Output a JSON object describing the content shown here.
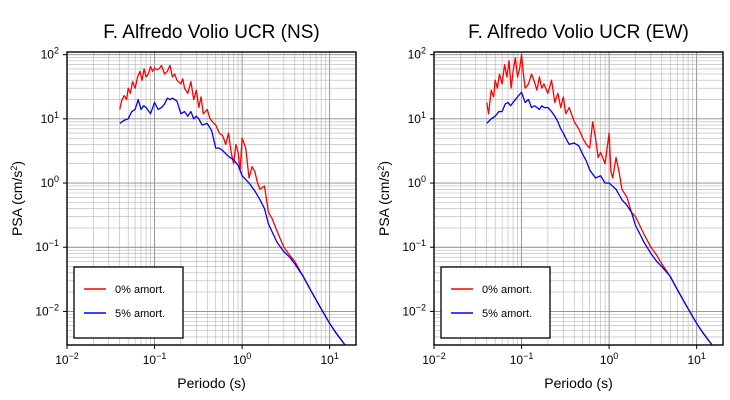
{
  "chart_data": [
    {
      "type": "line",
      "title": "F. Alfredo Volio UCR (NS)",
      "xlabel": "Periodo (s)",
      "ylabel_main": "PSA (cm/s",
      "ylabel_sup": "2",
      "ylabel_tail": ")",
      "xscale": "log",
      "yscale": "log",
      "xlim": [
        0.01,
        20
      ],
      "ylim": [
        0.003,
        110
      ],
      "grid": true,
      "legend_position": "bottom-left",
      "x_ticks": [
        {
          "value": 0.01,
          "base": "10",
          "exp": "−2"
        },
        {
          "value": 0.1,
          "base": "10",
          "exp": "−1"
        },
        {
          "value": 1,
          "base": "10",
          "exp": "0"
        },
        {
          "value": 10,
          "base": "10",
          "exp": "1"
        }
      ],
      "y_ticks": [
        {
          "value": 0.01,
          "base": "10",
          "exp": "−2"
        },
        {
          "value": 0.1,
          "base": "10",
          "exp": "−1"
        },
        {
          "value": 1,
          "base": "10",
          "exp": "0"
        },
        {
          "value": 10,
          "base": "10",
          "exp": "1"
        },
        {
          "value": 100,
          "base": "10",
          "exp": "2"
        }
      ],
      "series": [
        {
          "name": "0% amort.",
          "color": "#ff0000",
          "x": [
            0.04,
            0.042,
            0.045,
            0.048,
            0.05,
            0.053,
            0.056,
            0.06,
            0.064,
            0.068,
            0.072,
            0.076,
            0.08,
            0.085,
            0.09,
            0.095,
            0.1,
            0.107,
            0.115,
            0.12,
            0.13,
            0.14,
            0.15,
            0.16,
            0.17,
            0.18,
            0.2,
            0.21,
            0.22,
            0.24,
            0.26,
            0.28,
            0.3,
            0.32,
            0.34,
            0.36,
            0.4,
            0.43,
            0.46,
            0.5,
            0.55,
            0.6,
            0.65,
            0.7,
            0.75,
            0.8,
            0.85,
            0.9,
            0.95,
            1.0,
            1.1,
            1.2,
            1.3,
            1.4,
            1.5,
            1.6,
            1.8,
            2.0,
            2.2,
            2.5,
            3.0,
            3.5,
            4.0,
            5.0,
            6.0,
            8.0,
            10.0,
            12.0,
            15.0
          ],
          "y": [
            14,
            19,
            23,
            20,
            30,
            25,
            38,
            30,
            45,
            55,
            40,
            60,
            45,
            50,
            65,
            55,
            62,
            58,
            62,
            68,
            50,
            55,
            68,
            45,
            50,
            40,
            35,
            42,
            30,
            25,
            38,
            20,
            28,
            15,
            22,
            12,
            14,
            10,
            9,
            8,
            6,
            5.5,
            4,
            6,
            3,
            2,
            4,
            3,
            1.6,
            5,
            3.5,
            1.2,
            1.8,
            1.5,
            1.0,
            0.8,
            0.9,
            0.35,
            0.28,
            0.18,
            0.1,
            0.075,
            0.06,
            0.035,
            0.022,
            0.011,
            0.0065,
            0.0045,
            0.003
          ]
        },
        {
          "name": "5% amort.",
          "color": "#0000ff",
          "x": [
            0.04,
            0.045,
            0.05,
            0.055,
            0.06,
            0.065,
            0.07,
            0.075,
            0.08,
            0.09,
            0.1,
            0.11,
            0.12,
            0.13,
            0.14,
            0.15,
            0.16,
            0.17,
            0.18,
            0.2,
            0.22,
            0.24,
            0.26,
            0.28,
            0.3,
            0.32,
            0.35,
            0.4,
            0.45,
            0.5,
            0.55,
            0.6,
            0.7,
            0.8,
            0.9,
            1.0,
            1.2,
            1.4,
            1.6,
            1.8,
            2.0,
            2.5,
            3.0,
            3.5,
            4.0,
            5.0,
            6.0,
            8.0,
            10.0,
            12.0,
            15.0
          ],
          "y": [
            8.5,
            9.5,
            10,
            13,
            14,
            20,
            14,
            16,
            15,
            12,
            18,
            14,
            15,
            17,
            21,
            20,
            21,
            20,
            19,
            12,
            13,
            11,
            13,
            10,
            11,
            10,
            8,
            8.5,
            6.5,
            3.5,
            3.5,
            3.2,
            2.6,
            2.3,
            1.9,
            1.3,
            1.0,
            0.75,
            0.55,
            0.4,
            0.23,
            0.12,
            0.085,
            0.07,
            0.055,
            0.035,
            0.022,
            0.011,
            0.0065,
            0.0045,
            0.003
          ]
        }
      ]
    },
    {
      "type": "line",
      "title": "F. Alfredo Volio UCR (EW)",
      "xlabel": "Periodo (s)",
      "ylabel_main": "PSA (cm/s",
      "ylabel_sup": "2",
      "ylabel_tail": ")",
      "xscale": "log",
      "yscale": "log",
      "xlim": [
        0.01,
        20
      ],
      "ylim": [
        0.003,
        110
      ],
      "grid": true,
      "legend_position": "bottom-left",
      "x_ticks": [
        {
          "value": 0.01,
          "base": "10",
          "exp": "−2"
        },
        {
          "value": 0.1,
          "base": "10",
          "exp": "−1"
        },
        {
          "value": 1,
          "base": "10",
          "exp": "0"
        },
        {
          "value": 10,
          "base": "10",
          "exp": "1"
        }
      ],
      "y_ticks": [
        {
          "value": 0.01,
          "base": "10",
          "exp": "−2"
        },
        {
          "value": 0.1,
          "base": "10",
          "exp": "−1"
        },
        {
          "value": 1,
          "base": "10",
          "exp": "0"
        },
        {
          "value": 10,
          "base": "10",
          "exp": "1"
        },
        {
          "value": 100,
          "base": "10",
          "exp": "2"
        }
      ],
      "series": [
        {
          "name": "0% amort.",
          "color": "#ff0000",
          "x": [
            0.04,
            0.042,
            0.045,
            0.048,
            0.05,
            0.053,
            0.056,
            0.06,
            0.064,
            0.068,
            0.072,
            0.076,
            0.08,
            0.085,
            0.09,
            0.095,
            0.1,
            0.105,
            0.11,
            0.12,
            0.13,
            0.14,
            0.15,
            0.16,
            0.17,
            0.18,
            0.2,
            0.22,
            0.24,
            0.26,
            0.28,
            0.3,
            0.32,
            0.35,
            0.4,
            0.45,
            0.5,
            0.55,
            0.6,
            0.65,
            0.7,
            0.75,
            0.8,
            0.9,
            1.0,
            1.05,
            1.1,
            1.2,
            1.3,
            1.4,
            1.6,
            1.8,
            2.0,
            2.5,
            3.0,
            3.5,
            4.0,
            5.0,
            6.0,
            8.0,
            10.0,
            12.0,
            15.0
          ],
          "y": [
            18,
            12,
            28,
            22,
            40,
            30,
            50,
            35,
            70,
            45,
            80,
            30,
            55,
            90,
            45,
            60,
            100,
            50,
            30,
            35,
            50,
            38,
            28,
            45,
            30,
            35,
            25,
            40,
            18,
            25,
            15,
            22,
            12,
            15,
            9,
            7,
            5,
            4,
            3.5,
            9,
            5,
            2.5,
            3,
            2,
            6,
            1.5,
            1.2,
            2.5,
            1.5,
            0.8,
            0.6,
            0.35,
            0.3,
            0.16,
            0.1,
            0.075,
            0.055,
            0.035,
            0.022,
            0.011,
            0.0065,
            0.0045,
            0.003
          ]
        },
        {
          "name": "5% amort.",
          "color": "#0000ff",
          "x": [
            0.04,
            0.045,
            0.05,
            0.055,
            0.06,
            0.065,
            0.07,
            0.075,
            0.08,
            0.09,
            0.1,
            0.11,
            0.12,
            0.13,
            0.14,
            0.15,
            0.16,
            0.17,
            0.18,
            0.2,
            0.22,
            0.24,
            0.26,
            0.28,
            0.3,
            0.32,
            0.35,
            0.4,
            0.45,
            0.5,
            0.55,
            0.6,
            0.7,
            0.8,
            0.9,
            1.0,
            1.2,
            1.4,
            1.6,
            1.8,
            2.0,
            2.5,
            3.0,
            3.5,
            4.0,
            5.0,
            6.0,
            8.0,
            10.0,
            12.0,
            15.0
          ],
          "y": [
            8.5,
            10,
            11,
            13,
            13,
            17,
            18,
            16,
            18,
            22,
            26,
            18,
            20,
            15,
            16,
            15,
            14,
            16,
            15,
            15,
            13,
            11,
            9,
            7,
            6,
            5,
            4,
            4.2,
            3.8,
            2.8,
            2.2,
            1.6,
            1.2,
            1.3,
            1.0,
            1.0,
            0.8,
            0.55,
            0.45,
            0.35,
            0.22,
            0.12,
            0.08,
            0.06,
            0.05,
            0.035,
            0.022,
            0.011,
            0.0065,
            0.0045,
            0.003
          ]
        }
      ]
    }
  ]
}
